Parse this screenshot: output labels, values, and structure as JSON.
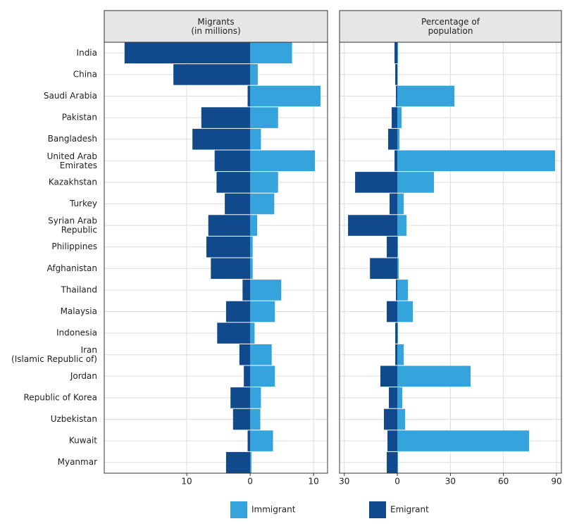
{
  "chart_data": [
    {
      "type": "bar",
      "orientation": "horizontal",
      "title": "Migrants\n(in millions)",
      "categories": [
        "India",
        "China",
        "Saudi Arabia",
        "Pakistan",
        "Bangladesh",
        "United Arab\nEmirates",
        "Kazakhstan",
        "Turkey",
        "Syrian Arab\nRepublic",
        "Philippines",
        "Afghanistan",
        "Thailand",
        "Malaysia",
        "Indonesia",
        "Iran\n(Islamic Republic of)",
        "Jordan",
        "Republic of Korea",
        "Uzbekistan",
        "Kuwait",
        "Myanmar"
      ],
      "series": [
        {
          "name": "Immigrant",
          "color": "#35a3dc",
          "values": [
            6.6,
            1.2,
            11.1,
            4.4,
            1.7,
            10.2,
            4.4,
            3.8,
            1.1,
            0.4,
            0.4,
            4.9,
            3.9,
            0.7,
            3.4,
            3.9,
            1.7,
            1.6,
            3.6,
            0.2
          ]
        },
        {
          "name": "Emigrant",
          "color": "#114a8c",
          "values": [
            -19.8,
            -12.1,
            -0.4,
            -7.7,
            -9.1,
            -5.6,
            -5.3,
            -4.0,
            -6.6,
            -6.9,
            -6.2,
            -1.2,
            -3.8,
            -5.2,
            -1.7,
            -1.0,
            -3.1,
            -2.7,
            -0.4,
            -3.8
          ]
        }
      ],
      "xlim": [
        -23,
        12.2
      ],
      "xticks": [
        {
          "value": -10,
          "label": "10"
        },
        0,
        10
      ],
      "grid": true
    },
    {
      "type": "bar",
      "orientation": "horizontal",
      "title": "Percentage of\npopulation",
      "series": [
        {
          "name": "Immigrant",
          "color": "#35a3dc",
          "values": [
            0.4,
            0.2,
            32.3,
            2.4,
            1.2,
            89.2,
            20.7,
            3.6,
            5.2,
            0.4,
            0.8,
            6.0,
            8.8,
            0.4,
            3.6,
            41.4,
            2.8,
            4.4,
            74.5,
            0.4
          ]
        },
        {
          "name": "Emigrant",
          "color": "#114a8c",
          "values": [
            -1.6,
            -1.2,
            -0.8,
            -3.2,
            -5.2,
            -1.6,
            -23.9,
            -4.4,
            -27.9,
            -6.0,
            -15.5,
            -0.8,
            -6.0,
            -1.2,
            -1.2,
            -9.6,
            -4.8,
            -7.6,
            -5.6,
            -6.0
          ]
        }
      ],
      "xlim": [
        -32.7,
        92.8
      ],
      "xticks": [
        {
          "value": -30,
          "label": "30"
        },
        0,
        30,
        60,
        90
      ],
      "grid": true
    }
  ]
}
